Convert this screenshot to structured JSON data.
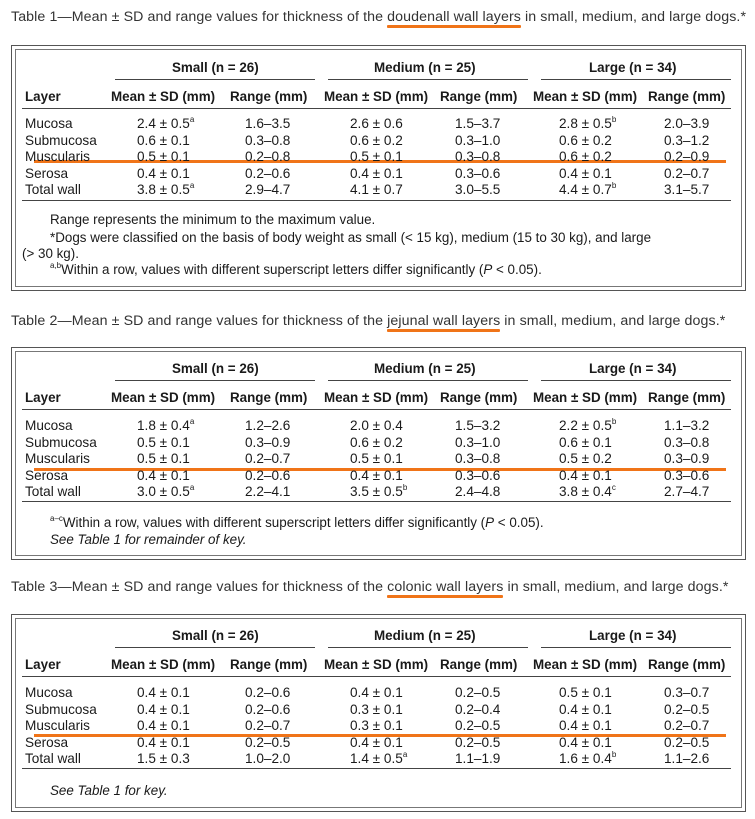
{
  "tables": [
    {
      "caption_before": "Table 1—Mean ± SD and range values for thickness of the ",
      "caption_highlight": "doudenall wall layers",
      "caption_after": " in small, medium, and large dogs.*",
      "groups": [
        "Small (n = 26)",
        "Medium (n = 25)",
        "Large (n = 34)"
      ],
      "layer_header": "Layer",
      "mean_header": "Mean ± SD (mm)",
      "range_header": "Range (mm)",
      "rows": [
        {
          "layer": "Mucosa",
          "cells": [
            [
              "2.4 ± 0.5",
              "a",
              "1.6–3.5"
            ],
            [
              "2.6 ± 0.6",
              "",
              "1.5–3.7"
            ],
            [
              "2.8 ± 0.5",
              "b",
              "2.0–3.9"
            ]
          ]
        },
        {
          "layer": "Submucosa",
          "cells": [
            [
              "0.6 ± 0.1",
              "",
              "0.3–0.8"
            ],
            [
              "0.6 ± 0.2",
              "",
              "0.3–1.0"
            ],
            [
              "0.6 ± 0.2",
              "",
              "0.3–1.2"
            ]
          ]
        },
        {
          "layer": "Muscularis",
          "cells": [
            [
              "0.5 ± 0.1",
              "",
              "0.2–0.8"
            ],
            [
              "0.5 ± 0.1",
              "",
              "0.3–0.8"
            ],
            [
              "0.6 ± 0.2",
              "",
              "0.2–0.9"
            ]
          ]
        },
        {
          "layer": "Serosa",
          "cells": [
            [
              "0.4 ± 0.1",
              "",
              "0.2–0.6"
            ],
            [
              "0.4 ± 0.1",
              "",
              "0.3–0.6"
            ],
            [
              "0.4 ± 0.1",
              "",
              "0.2–0.7"
            ]
          ]
        },
        {
          "layer": "Total wall",
          "cells": [
            [
              "3.8 ± 0.5",
              "a",
              "2.9–4.7"
            ],
            [
              "4.1 ± 0.7",
              "",
              "3.0–5.5"
            ],
            [
              "4.4 ± 0.7",
              "b",
              "3.1–5.7"
            ]
          ]
        }
      ],
      "notes": [
        "Range represents the minimum to the maximum value.",
        "*Dogs were classified on the basis of body weight as small (< 15 kg), medium (15 to 30 kg), and large",
        "(> 30 kg).",
        "a,bWithin a row, values with different superscript letters differ significantly (P < 0.05)."
      ]
    },
    {
      "caption_before": "Table 2—Mean ± SD and range values for thickness of the ",
      "caption_highlight": "jejunal wall layers",
      "caption_after": " in small, medium, and large dogs.*",
      "groups": [
        "Small (n = 26)",
        "Medium (n = 25)",
        "Large (n = 34)"
      ],
      "layer_header": "Layer",
      "mean_header": "Mean ± SD (mm)",
      "range_header": "Range (mm)",
      "rows": [
        {
          "layer": "Mucosa",
          "cells": [
            [
              "1.8 ± 0.4",
              "a",
              "1.2–2.6"
            ],
            [
              "2.0 ± 0.4",
              "",
              "1.5–3.2"
            ],
            [
              "2.2 ± 0.5",
              "b",
              "1.1–3.2"
            ]
          ]
        },
        {
          "layer": "Submucosa",
          "cells": [
            [
              "0.5 ± 0.1",
              "",
              "0.3–0.9"
            ],
            [
              "0.6 ± 0.2",
              "",
              "0.3–1.0"
            ],
            [
              "0.6 ± 0.1",
              "",
              "0.3–0.8"
            ]
          ]
        },
        {
          "layer": "Muscularis",
          "cells": [
            [
              "0.5 ± 0.1",
              "",
              "0.2–0.7"
            ],
            [
              "0.5 ± 0.1",
              "",
              "0.3–0.8"
            ],
            [
              "0.5 ± 0.2",
              "",
              "0.3–0.9"
            ]
          ]
        },
        {
          "layer": "Serosa",
          "cells": [
            [
              "0.4 ± 0.1",
              "",
              "0.2–0.6"
            ],
            [
              "0.4 ± 0.1",
              "",
              "0.3–0.6"
            ],
            [
              "0.4 ± 0.1",
              "",
              "0.3–0.6"
            ]
          ]
        },
        {
          "layer": "Total wall",
          "cells": [
            [
              "3.0 ± 0.5",
              "a",
              "2.2–4.1"
            ],
            [
              "3.5 ± 0.5",
              "b",
              "2.4–4.8"
            ],
            [
              "3.8 ± 0.4",
              "c",
              "2.7–4.7"
            ]
          ]
        }
      ],
      "notes": [
        "a–cWithin a row, values with different superscript letters differ significantly (P < 0.05).",
        "See Table 1 for remainder of key."
      ]
    },
    {
      "caption_before": "Table 3—Mean ± SD and range values for thickness of the ",
      "caption_highlight": "colonic wall layers",
      "caption_after": " in small, medium, and large dogs.*",
      "groups": [
        "Small (n = 26)",
        "Medium (n = 25)",
        "Large (n = 34)"
      ],
      "layer_header": "Layer",
      "mean_header": "Mean ± SD (mm)",
      "range_header": "Range (mm)",
      "rows": [
        {
          "layer": "Mucosa",
          "cells": [
            [
              "0.4 ± 0.1",
              "",
              "0.2–0.6"
            ],
            [
              "0.4 ± 0.1",
              "",
              "0.2–0.5"
            ],
            [
              "0.5 ± 0.1",
              "",
              "0.3–0.7"
            ]
          ]
        },
        {
          "layer": "Submucosa",
          "cells": [
            [
              "0.4 ± 0.1",
              "",
              "0.2–0.6"
            ],
            [
              "0.3 ± 0.1",
              "",
              "0.2–0.4"
            ],
            [
              "0.4 ± 0.1",
              "",
              "0.2–0.5"
            ]
          ]
        },
        {
          "layer": "Muscularis",
          "cells": [
            [
              "0.4 ± 0.1",
              "",
              "0.2–0.7"
            ],
            [
              "0.3 ± 0.1",
              "",
              "0.2–0.5"
            ],
            [
              "0.4 ± 0.1",
              "",
              "0.2–0.7"
            ]
          ]
        },
        {
          "layer": "Serosa",
          "cells": [
            [
              "0.4 ± 0.1",
              "",
              "0.2–0.5"
            ],
            [
              "0.4 ± 0.1",
              "",
              "0.2–0.5"
            ],
            [
              "0.4 ± 0.1",
              "",
              "0.2–0.5"
            ]
          ]
        },
        {
          "layer": "Total wall",
          "cells": [
            [
              "1.5 ± 0.3",
              "",
              "1.0–2.0"
            ],
            [
              "1.4 ± 0.5",
              "a",
              "1.1–1.9"
            ],
            [
              "1.6 ± 0.4",
              "b",
              "1.1–2.6"
            ]
          ]
        }
      ],
      "notes": [
        "See Table 1 for key."
      ]
    }
  ],
  "colors": {
    "highlight": "#f07418",
    "border": "#555555",
    "text": "#1a1a1a"
  }
}
